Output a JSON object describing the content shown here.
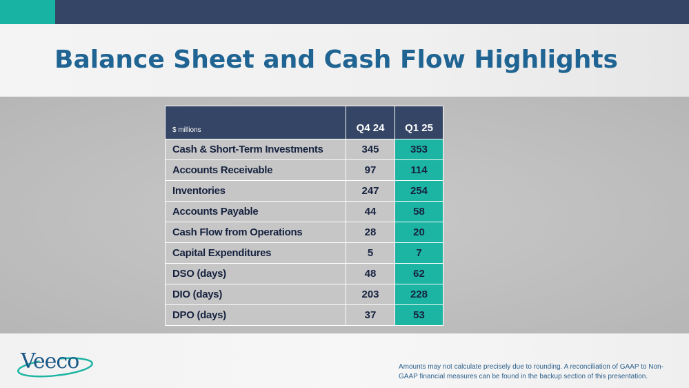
{
  "slide": {
    "title": "Balance Sheet and Cash Flow Highlights"
  },
  "table": {
    "unit_label": "$ millions",
    "columns": [
      "Q4 24",
      "Q1 25"
    ],
    "rows": [
      {
        "label": "Cash & Short-Term Investments",
        "q4_24": "345",
        "q1_25": "353"
      },
      {
        "label": "Accounts Receivable",
        "q4_24": "97",
        "q1_25": "114"
      },
      {
        "label": "Inventories",
        "q4_24": "247",
        "q1_25": "254"
      },
      {
        "label": "Accounts Payable",
        "q4_24": "44",
        "q1_25": "58"
      },
      {
        "label": "Cash Flow from Operations",
        "q4_24": "28",
        "q1_25": "20"
      },
      {
        "label": "Capital Expenditures",
        "q4_24": "5",
        "q1_25": "7"
      },
      {
        "label": "DSO (days)",
        "q4_24": "48",
        "q1_25": "62"
      },
      {
        "label": "DIO (days)",
        "q4_24": "203",
        "q1_25": "228"
      },
      {
        "label": "DPO (days)",
        "q4_24": "37",
        "q1_25": "53"
      }
    ]
  },
  "footer": {
    "logo_text": "Veeco",
    "note": "Amounts may not calculate precisely due to rounding.  A reconciliation of GAAP to Non-GAAP financial measures can be found in the backup section of this presentation."
  },
  "colors": {
    "navy": "#344565",
    "teal": "#1cb4a2",
    "title_blue": "#1f6492",
    "cell_gray": "#c6c6c6"
  }
}
